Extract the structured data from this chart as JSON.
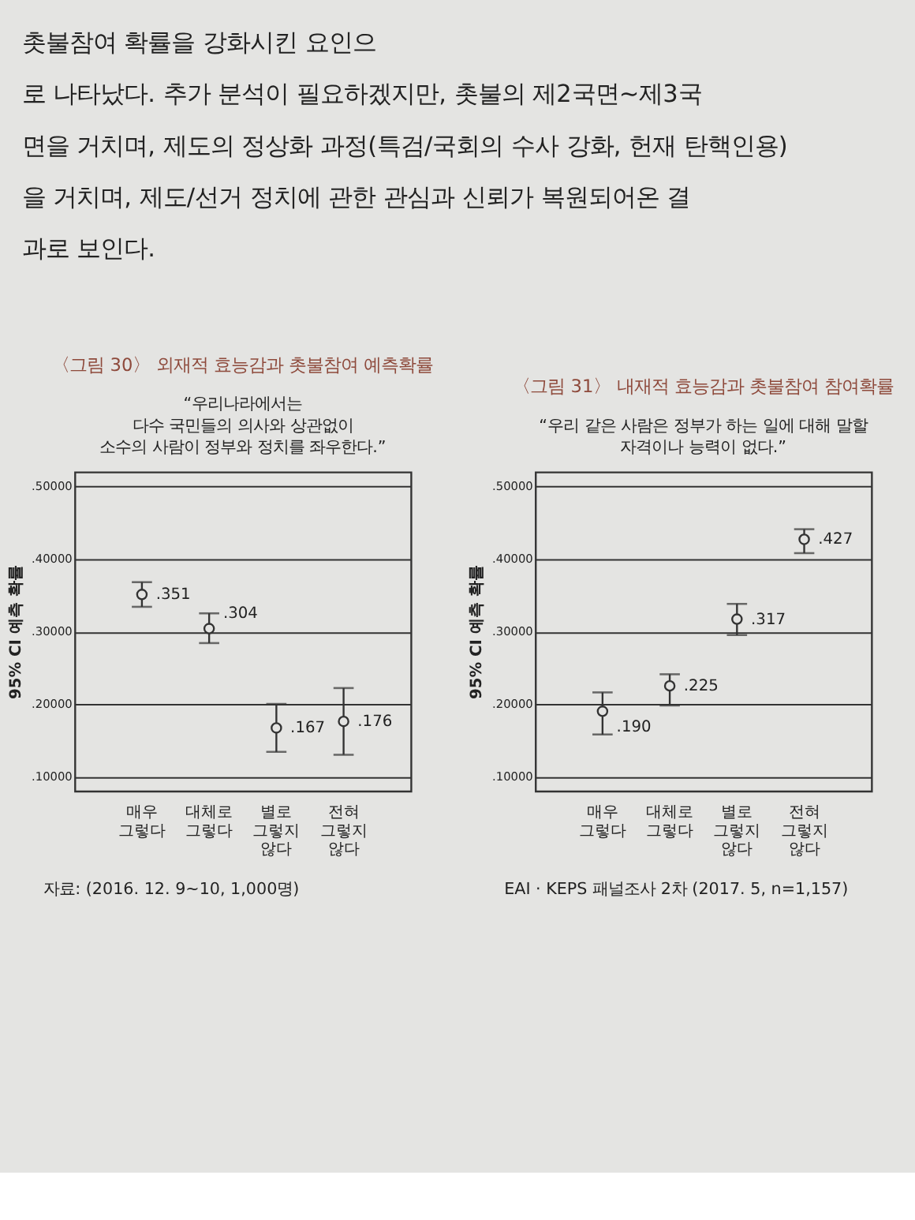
{
  "chart_data": [
    {
      "type": "other",
      "annotations": [
        "촛불참여 확률을 강화시킨 요인으",
        "로 나타났다. 추가 분석이 필요하겠지만, 촛불의 제2국면~제3국",
        "면을 거치며, 제도의 정상화 과정(특검/국회의 수사 강화, 헌재 탄핵인용)",
        "을 거치며, 제도/선거 정치에 관한 관심과 신뢰가 복원되어온 결",
        "과로 보인다."
      ]
    },
    {
      "type": "scatter",
      "title": "〈그림 30〉 외재적 효능감과 촛불참여 예측확률",
      "subtitle": "“우리나라에서는\n다수 국민들의 의사와 상관없이\n소수의 사람이 정부와 정치를 좌우한다.”",
      "ylabel": "95% CI 예측 확률",
      "categories": [
        "매우 그렇다",
        "대체로 그렇다",
        "별로 그렇지 않다",
        "전혀 그렇지 않다"
      ],
      "values": [
        0.351,
        0.304,
        0.167,
        0.176
      ],
      "errors": [
        [
          0.334,
          0.368
        ],
        [
          0.284,
          0.325
        ],
        [
          0.134,
          0.2
        ],
        [
          0.13,
          0.222
        ]
      ],
      "value_labels": [
        ".351",
        ".304",
        ".167",
        ".176"
      ],
      "color": "#333333",
      "marker": "circle",
      "ylim": [
        0.08,
        0.52
      ],
      "yticks": [
        {
          "value": 0.1,
          "label": ".10000"
        },
        {
          "value": 0.2,
          "label": ".20000"
        },
        {
          "value": 0.3,
          "label": ".30000"
        },
        {
          "value": 0.4,
          "label": ".40000"
        },
        {
          "value": 0.5,
          "label": ".50000"
        }
      ],
      "grid": "y",
      "annotations": [
        "자료: (2016. 12. 9~10, 1,000명)"
      ]
    },
    {
      "type": "scatter",
      "title": "〈그림 31〉 내재적 효능감과 촛불참여 참여확률",
      "subtitle": "“우리 같은 사람은 정부가 하는 일에 대해 말할\n자격이나 능력이 없다.”",
      "ylabel": "95% CI 예측 확률",
      "categories": [
        "매우 그렇다",
        "대체로 그렇다",
        "별로 그렇지 않다",
        "전혀 그렇지 않다"
      ],
      "values": [
        0.19,
        0.225,
        0.317,
        0.427
      ],
      "errors": [
        [
          0.158,
          0.216
        ],
        [
          0.198,
          0.241
        ],
        [
          0.295,
          0.338
        ],
        [
          0.408,
          0.441
        ]
      ],
      "value_labels": [
        ".190",
        ".225",
        ".317",
        ".427"
      ],
      "color": "#333333",
      "marker": "circle",
      "ylim": [
        0.08,
        0.52
      ],
      "yticks": [
        {
          "value": 0.1,
          "label": ".10000"
        },
        {
          "value": 0.2,
          "label": ".20000"
        },
        {
          "value": 0.3,
          "label": ".30000"
        },
        {
          "value": 0.4,
          "label": ".40000"
        },
        {
          "value": 0.5,
          "label": ".50000"
        }
      ],
      "grid": "y",
      "annotations": [
        "EAI · KEPS 패널조사 2차 (2017. 5, n=1,157)"
      ]
    }
  ]
}
